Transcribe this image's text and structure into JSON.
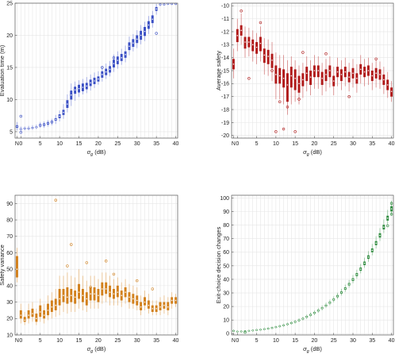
{
  "chart_data": [
    {
      "type": "box",
      "id": "eval-time",
      "xlabel_symbol": "σ",
      "xlabel_sub": "g",
      "xlabel_unit": " (dB)",
      "ylabel": "Evaluation time (m)",
      "ylim": [
        4,
        25
      ],
      "yticks": [
        5,
        10,
        15,
        20,
        25
      ],
      "xticks": [
        "N",
        "0",
        "5",
        "10",
        "15",
        "20",
        "25",
        "30",
        "35",
        "40"
      ],
      "color": "#3a4fc4",
      "x": [
        "N",
        0,
        1,
        2,
        3,
        4,
        5,
        6,
        7,
        8,
        9,
        10,
        11,
        12,
        13,
        14,
        15,
        16,
        17,
        18,
        19,
        20,
        21,
        22,
        23,
        24,
        25,
        26,
        27,
        28,
        29,
        30,
        31,
        32,
        33,
        34,
        35,
        36,
        37,
        38,
        39,
        40
      ],
      "median": [
        5.8,
        5.4,
        5.5,
        5.5,
        5.6,
        5.7,
        6.0,
        6.1,
        6.3,
        6.5,
        6.9,
        7.4,
        8.0,
        9.3,
        10.7,
        11.5,
        11.7,
        11.9,
        12.1,
        12.6,
        12.9,
        13.2,
        13.9,
        14.3,
        14.7,
        15.6,
        16.1,
        16.5,
        17.0,
        18.3,
        18.8,
        19.4,
        20.0,
        20.6,
        21.6,
        22.5,
        24.1,
        24.8,
        24.8,
        24.9,
        24.9,
        24.9
      ],
      "q1": [
        5.6,
        5.3,
        5.4,
        5.4,
        5.5,
        5.6,
        5.8,
        5.9,
        6.1,
        6.3,
        6.7,
        7.1,
        7.6,
        8.7,
        10.0,
        10.9,
        11.1,
        11.3,
        11.6,
        12.1,
        12.4,
        12.8,
        13.4,
        13.8,
        14.2,
        15.0,
        15.5,
        16.0,
        16.5,
        17.7,
        18.2,
        18.8,
        19.3,
        19.9,
        21.0,
        21.9,
        23.8,
        24.7,
        24.7,
        24.8,
        24.8,
        24.8
      ],
      "q3": [
        6.0,
        5.5,
        5.6,
        5.6,
        5.7,
        5.8,
        6.2,
        6.3,
        6.5,
        6.7,
        7.1,
        7.7,
        8.4,
        9.9,
        11.4,
        12.0,
        12.3,
        12.5,
        12.6,
        13.1,
        13.4,
        13.6,
        14.4,
        14.8,
        15.2,
        16.2,
        16.7,
        17.1,
        17.5,
        18.9,
        19.4,
        20.0,
        20.7,
        21.3,
        22.2,
        23.1,
        24.4,
        24.9,
        24.9,
        25.0,
        25.0,
        25.0
      ],
      "min": [
        5.2,
        5.1,
        5.2,
        5.2,
        5.3,
        5.4,
        5.6,
        5.6,
        5.8,
        6.0,
        6.2,
        6.6,
        7.0,
        8.0,
        9.0,
        9.8,
        10.4,
        10.8,
        11.0,
        11.4,
        11.8,
        12.3,
        12.8,
        13.2,
        13.6,
        14.3,
        14.8,
        15.4,
        15.8,
        16.9,
        17.5,
        18.0,
        18.6,
        19.1,
        20.2,
        21.2,
        23.2,
        24.5,
        24.6,
        24.7,
        24.7,
        24.7
      ],
      "max": [
        6.5,
        5.8,
        5.8,
        5.9,
        6.0,
        6.1,
        6.5,
        6.6,
        6.8,
        7.0,
        7.6,
        8.3,
        9.3,
        10.8,
        12.5,
        12.8,
        13.0,
        13.2,
        13.5,
        13.9,
        14.2,
        14.4,
        15.1,
        15.6,
        16.0,
        17.0,
        17.5,
        17.9,
        18.4,
        19.8,
        20.2,
        20.8,
        21.6,
        22.1,
        23.0,
        23.8,
        24.9,
        25.0,
        25.0,
        25.0,
        25.0,
        25.0
      ],
      "outliers": [
        [
          0,
          7.4
        ],
        [
          0,
          4.9
        ],
        [
          21,
          15.0
        ],
        [
          24,
          16.5
        ],
        [
          35,
          20.3
        ]
      ]
    },
    {
      "type": "box",
      "id": "avg-safety",
      "xlabel_symbol": "σ",
      "xlabel_sub": "g",
      "xlabel_unit": " (dB)",
      "ylabel": "Average safety",
      "ylim": [
        -20.2,
        -9.8
      ],
      "yticks": [
        -20,
        -19,
        -18,
        -17,
        -16,
        -15,
        -14,
        -13,
        -12,
        -11,
        -10
      ],
      "xticks": [
        "N",
        "0",
        "5",
        "10",
        "15",
        "20",
        "25",
        "30",
        "35",
        "40"
      ],
      "color": "#b01818",
      "x": [
        "N",
        0,
        1,
        2,
        3,
        4,
        5,
        6,
        7,
        8,
        9,
        10,
        11,
        12,
        13,
        14,
        15,
        16,
        17,
        18,
        19,
        20,
        21,
        22,
        23,
        24,
        25,
        26,
        27,
        28,
        29,
        30,
        31,
        32,
        33,
        34,
        35,
        36,
        37,
        38,
        39,
        40
      ],
      "median": [
        -14.5,
        -12.3,
        -11.9,
        -12.8,
        -12.8,
        -13.0,
        -13.2,
        -12.9,
        -13.8,
        -13.9,
        -14.2,
        -15.3,
        -15.4,
        -15.6,
        -16.1,
        -15.4,
        -15.6,
        -16.0,
        -15.7,
        -15.2,
        -15.5,
        -15.0,
        -15.0,
        -15.6,
        -15.3,
        -15.0,
        -15.8,
        -15.1,
        -15.3,
        -15.1,
        -15.5,
        -15.2,
        -15.6,
        -14.9,
        -15.1,
        -15.0,
        -15.4,
        -15.2,
        -15.3,
        -15.7,
        -16.1,
        -16.6
      ],
      "q1": [
        -14.9,
        -12.8,
        -12.3,
        -13.3,
        -13.2,
        -13.5,
        -13.7,
        -13.5,
        -14.4,
        -14.5,
        -14.8,
        -16.0,
        -16.0,
        -16.3,
        -17.4,
        -16.3,
        -16.5,
        -16.7,
        -16.2,
        -15.8,
        -16.1,
        -15.5,
        -15.5,
        -16.1,
        -15.8,
        -15.5,
        -16.2,
        -15.5,
        -15.8,
        -15.5,
        -15.9,
        -15.6,
        -16.0,
        -15.3,
        -15.5,
        -15.4,
        -15.8,
        -15.6,
        -15.7,
        -16.1,
        -16.5,
        -17.0
      ],
      "q3": [
        -14.1,
        -11.8,
        -11.5,
        -12.4,
        -12.4,
        -12.6,
        -12.8,
        -12.4,
        -13.3,
        -13.4,
        -13.7,
        -14.6,
        -14.8,
        -14.9,
        -15.2,
        -14.7,
        -14.9,
        -15.4,
        -15.2,
        -14.7,
        -15.0,
        -14.6,
        -14.6,
        -15.1,
        -14.9,
        -14.6,
        -15.4,
        -14.7,
        -14.9,
        -14.7,
        -15.1,
        -14.8,
        -15.2,
        -14.5,
        -14.7,
        -14.6,
        -15.0,
        -14.8,
        -14.9,
        -15.3,
        -15.7,
        -16.3
      ],
      "min": [
        -15.6,
        -13.5,
        -13.0,
        -14.0,
        -13.9,
        -14.3,
        -14.5,
        -14.3,
        -15.3,
        -15.4,
        -15.8,
        -17.2,
        -17.2,
        -17.6,
        -18.4,
        -17.6,
        -17.4,
        -17.6,
        -17.1,
        -16.6,
        -16.9,
        -16.4,
        -16.4,
        -16.9,
        -16.6,
        -16.3,
        -16.9,
        -16.2,
        -16.5,
        -16.2,
        -16.6,
        -16.3,
        -16.7,
        -16.0,
        -16.2,
        -16.1,
        -16.5,
        -16.3,
        -16.4,
        -16.8,
        -17.1,
        -17.4
      ],
      "max": [
        -13.3,
        -11.0,
        -10.6,
        -11.6,
        -11.7,
        -11.9,
        -12.1,
        -11.6,
        -12.5,
        -12.6,
        -12.8,
        -13.6,
        -13.8,
        -13.8,
        -14.2,
        -13.9,
        -14.2,
        -14.6,
        -14.4,
        -13.9,
        -14.2,
        -13.8,
        -13.9,
        -14.4,
        -14.1,
        -13.9,
        -14.7,
        -14.0,
        -14.2,
        -14.0,
        -14.4,
        -14.1,
        -14.5,
        -13.8,
        -14.1,
        -14.0,
        -14.4,
        -14.2,
        -14.3,
        -14.7,
        -15.1,
        -15.8
      ],
      "outliers": [
        [
          1,
          -10.4
        ],
        [
          6,
          -11.3
        ],
        [
          3,
          -15.6
        ],
        [
          9,
          -15.0
        ],
        [
          10,
          -19.7
        ],
        [
          12,
          -19.5
        ],
        [
          15,
          -19.7
        ],
        [
          16,
          -17.2
        ],
        [
          17,
          -13.6
        ],
        [
          23,
          -13.7
        ],
        [
          29,
          -17.0
        ],
        [
          36,
          -14.1
        ],
        [
          13,
          -17.8
        ],
        [
          11,
          -17.4
        ]
      ]
    },
    {
      "type": "box",
      "id": "safety-variance",
      "xlabel_symbol": "σ",
      "xlabel_sub": "g",
      "xlabel_unit": " (dB)",
      "ylabel": "Safety variance",
      "ylim": [
        10,
        95
      ],
      "yticks": [
        10,
        20,
        30,
        40,
        50,
        60,
        70,
        80,
        90
      ],
      "xticks": [
        "N",
        "0",
        "5",
        "10",
        "15",
        "20",
        "25",
        "30",
        "35",
        "40"
      ],
      "color": "#d2801c",
      "x": [
        "N",
        0,
        1,
        2,
        3,
        4,
        5,
        6,
        7,
        8,
        9,
        10,
        11,
        12,
        13,
        14,
        15,
        16,
        17,
        18,
        19,
        20,
        21,
        22,
        23,
        24,
        25,
        26,
        27,
        28,
        29,
        30,
        31,
        32,
        33,
        34,
        35,
        36,
        37,
        38,
        39,
        40
      ],
      "median": [
        50,
        22,
        19,
        22,
        23,
        20,
        24,
        22,
        25,
        27,
        28,
        32,
        34,
        33,
        34,
        33,
        36,
        34,
        32,
        35,
        35,
        34,
        38,
        38,
        36,
        35,
        36,
        34,
        36,
        33,
        32,
        31,
        27,
        30,
        28,
        26,
        26,
        27,
        28,
        27,
        31,
        31
      ],
      "q1": [
        45,
        20,
        18,
        20,
        21,
        18,
        21,
        20,
        22,
        24,
        25,
        28,
        30,
        29,
        30,
        29,
        32,
        30,
        28,
        31,
        31,
        30,
        34,
        35,
        33,
        32,
        33,
        31,
        33,
        30,
        29,
        28,
        25,
        28,
        26,
        24,
        24,
        25,
        26,
        25,
        29,
        29
      ],
      "q3": [
        58,
        25,
        21,
        25,
        26,
        23,
        28,
        25,
        29,
        31,
        32,
        38,
        38,
        39,
        38,
        37,
        41,
        38,
        36,
        39,
        39,
        38,
        42,
        42,
        40,
        38,
        40,
        37,
        39,
        36,
        35,
        34,
        30,
        33,
        31,
        28,
        28,
        30,
        30,
        30,
        33,
        33
      ],
      "min": [
        42,
        17,
        16,
        17,
        18,
        16,
        18,
        17,
        19,
        20,
        21,
        22,
        24,
        23,
        24,
        24,
        26,
        25,
        24,
        26,
        26,
        26,
        29,
        30,
        28,
        28,
        28,
        27,
        29,
        26,
        26,
        25,
        22,
        25,
        23,
        22,
        22,
        22,
        23,
        22,
        26,
        27
      ],
      "max": [
        63,
        29,
        24,
        29,
        30,
        26,
        32,
        29,
        34,
        36,
        38,
        46,
        46,
        48,
        46,
        45,
        50,
        46,
        43,
        46,
        46,
        44,
        48,
        48,
        46,
        44,
        45,
        42,
        44,
        41,
        40,
        39,
        34,
        37,
        35,
        31,
        31,
        33,
        34,
        33,
        36,
        35
      ],
      "outliers": [
        [
          9,
          92
        ],
        [
          13,
          65
        ],
        [
          12,
          52
        ],
        [
          17,
          54
        ],
        [
          22,
          55
        ],
        [
          24,
          47
        ],
        [
          30,
          43
        ],
        [
          34,
          38
        ],
        [
          18,
          39
        ],
        [
          36,
          29
        ]
      ]
    },
    {
      "type": "box",
      "id": "exit-choice",
      "xlabel_symbol": "σ",
      "xlabel_sub": "g",
      "xlabel_unit": " (dB)",
      "ylabel": "Exit-choice decision changes",
      "ylim": [
        -1,
        102
      ],
      "yticks": [
        0,
        10,
        20,
        30,
        40,
        50,
        60,
        70,
        80,
        90,
        100
      ],
      "xticks": [
        "N",
        "0",
        "5",
        "10",
        "15",
        "20",
        "25",
        "30",
        "35",
        "40"
      ],
      "color": "#2e8b3e",
      "x": [
        "N",
        0,
        1,
        2,
        3,
        4,
        5,
        6,
        7,
        8,
        9,
        10,
        11,
        12,
        13,
        14,
        15,
        16,
        17,
        18,
        19,
        20,
        21,
        22,
        23,
        24,
        25,
        26,
        27,
        28,
        29,
        30,
        31,
        32,
        33,
        34,
        35,
        36,
        37,
        38,
        39,
        40
      ],
      "median": [
        2,
        1.5,
        1.6,
        1.8,
        2.0,
        2.3,
        2.6,
        2.9,
        3.3,
        3.7,
        4.2,
        4.8,
        5.4,
        6.1,
        6.9,
        7.8,
        8.7,
        9.8,
        11.0,
        12.4,
        13.8,
        15.3,
        17.0,
        18.8,
        20.7,
        22.8,
        25.1,
        27.6,
        30.3,
        33.2,
        36.4,
        39.8,
        43.5,
        47.5,
        51.8,
        56.4,
        61.4,
        66.7,
        72.4,
        78.5,
        85.1,
        92.0
      ],
      "q1": [
        1.6,
        1.2,
        1.3,
        1.5,
        1.7,
        2.0,
        2.3,
        2.6,
        2.9,
        3.3,
        3.8,
        4.4,
        5.0,
        5.7,
        6.5,
        7.3,
        8.2,
        9.3,
        10.5,
        11.8,
        13.2,
        14.7,
        16.4,
        18.2,
        20.1,
        22.1,
        24.4,
        26.8,
        29.5,
        32.3,
        35.5,
        38.8,
        42.4,
        46.3,
        50.5,
        55.1,
        60.0,
        65.2,
        70.8,
        76.8,
        83.3,
        90.1
      ],
      "q3": [
        2.4,
        1.8,
        1.9,
        2.1,
        2.3,
        2.6,
        2.9,
        3.2,
        3.7,
        4.1,
        4.6,
        5.2,
        5.8,
        6.5,
        7.3,
        8.3,
        9.2,
        10.3,
        11.5,
        13.0,
        14.4,
        15.9,
        17.6,
        19.4,
        21.3,
        23.5,
        25.8,
        28.4,
        31.1,
        34.1,
        37.3,
        40.8,
        44.6,
        48.7,
        53.1,
        57.7,
        62.8,
        68.2,
        74.0,
        80.2,
        86.9,
        93.9
      ],
      "min": [
        1.2,
        1.0,
        1.0,
        1.2,
        1.4,
        1.6,
        1.9,
        2.2,
        2.5,
        2.9,
        3.3,
        3.9,
        4.4,
        5.1,
        5.9,
        6.6,
        7.5,
        8.5,
        9.7,
        10.9,
        12.3,
        13.7,
        15.4,
        17.1,
        19.0,
        20.9,
        23.1,
        25.5,
        28.1,
        30.8,
        33.9,
        37.1,
        40.6,
        44.4,
        48.5,
        52.9,
        57.7,
        62.8,
        68.3,
        74.1,
        80.4,
        87.0
      ],
      "max": [
        2.9,
        2.2,
        2.3,
        2.5,
        2.7,
        3.0,
        3.3,
        3.7,
        4.1,
        4.6,
        5.1,
        5.7,
        6.4,
        7.1,
        8.0,
        9.0,
        10.0,
        11.2,
        12.4,
        14.0,
        15.5,
        17.0,
        18.8,
        20.7,
        22.7,
        25.0,
        27.4,
        30.1,
        33.0,
        36.1,
        39.5,
        43.2,
        47.1,
        51.4,
        56.0,
        60.8,
        66.1,
        71.8,
        77.8,
        84.2,
        91.2,
        98.0
      ],
      "outliers": [
        [
          40,
          96
        ],
        [
          40,
          88
        ],
        [
          39,
          79.5
        ],
        [
          2,
          1.0
        ]
      ]
    }
  ]
}
